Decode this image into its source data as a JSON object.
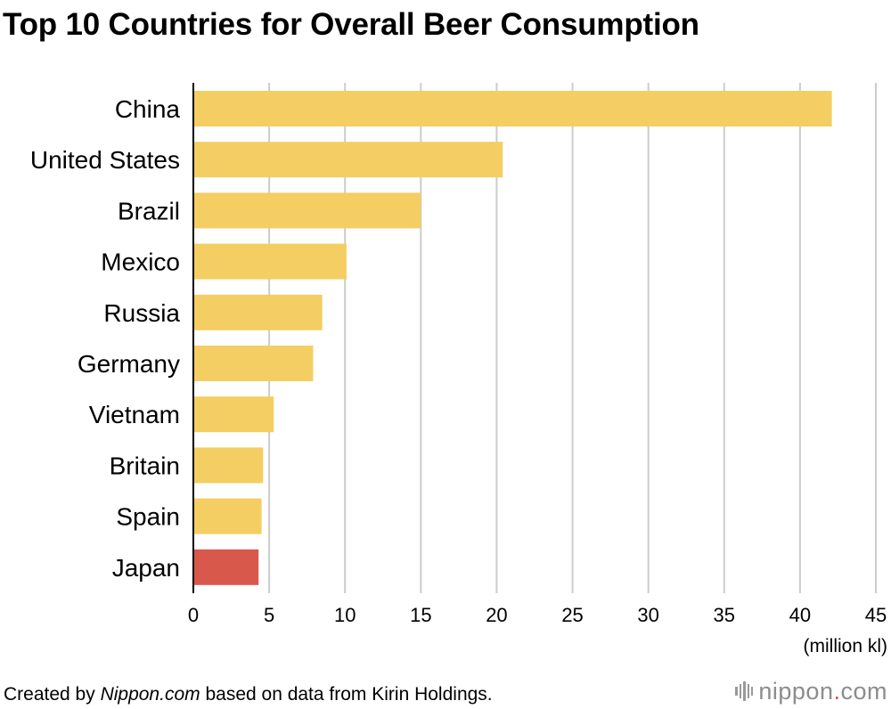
{
  "title": "Top 10 Countries for Overall Beer Consumption",
  "chart_data": {
    "type": "bar",
    "orientation": "horizontal",
    "categories": [
      "China",
      "United States",
      "Brazil",
      "Mexico",
      "Russia",
      "Germany",
      "Vietnam",
      "Britain",
      "Spain",
      "Japan"
    ],
    "values": [
      42.1,
      20.4,
      15.0,
      10.1,
      8.5,
      7.9,
      5.3,
      4.6,
      4.5,
      4.3
    ],
    "highlight": "Japan",
    "xlim": [
      0,
      45
    ],
    "xticks": [
      0,
      5,
      10,
      15,
      20,
      25,
      30,
      35,
      40,
      45
    ],
    "xlabel": "(million kl)",
    "grid": "vertical",
    "colors": {
      "bar": "#f4ce62",
      "highlight": "#d9584c",
      "grid": "#cccccc",
      "axis": "#000000"
    }
  },
  "footer": {
    "prefix": "Created by ",
    "source_site": "Nippon.com",
    "suffix": " based on data from Kirin Holdings."
  },
  "logo": {
    "name": "nippon",
    "dot": ".",
    "tld": "com",
    "icon": "nippon-barcode-icon"
  }
}
